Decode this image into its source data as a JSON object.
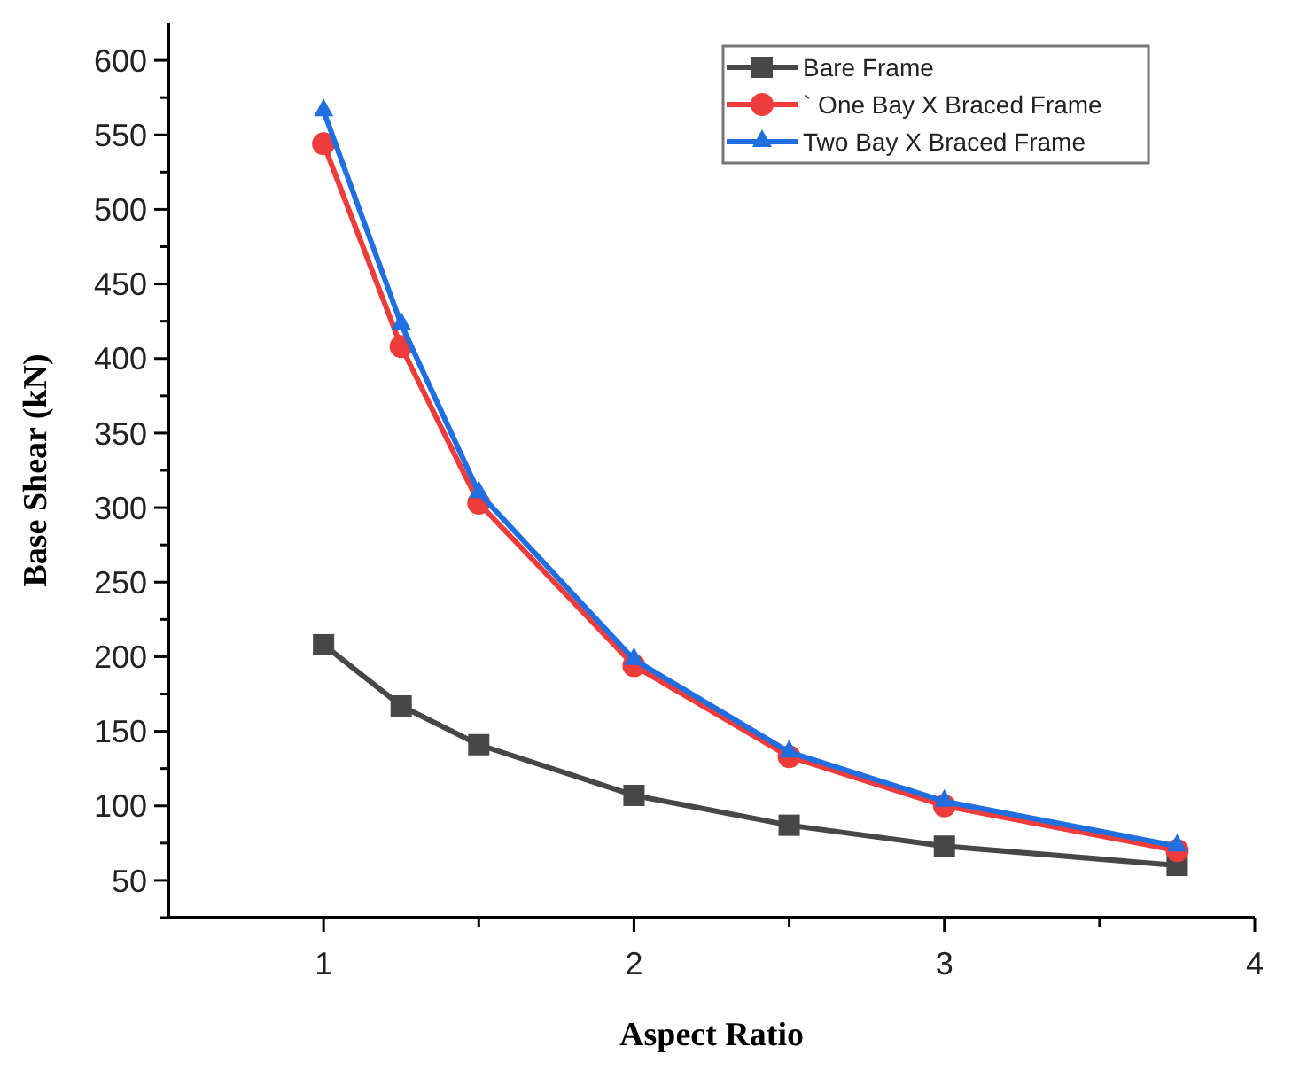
{
  "chart_data": {
    "type": "line",
    "xlabel": "Aspect Ratio",
    "ylabel": "Base Shear (kN)",
    "x": [
      1,
      1.25,
      1.5,
      2,
      2.5,
      3,
      3.75
    ],
    "series": [
      {
        "name": "Bare Frame",
        "color": "#474747",
        "marker": "square",
        "values": [
          208,
          167,
          141,
          107,
          87,
          73,
          60
        ]
      },
      {
        "name": "` One Bay X Braced Frame",
        "color": "#ee3b3b",
        "marker": "circle",
        "values": [
          544,
          408,
          303,
          194,
          133,
          100,
          70
        ]
      },
      {
        "name": "Two Bay X Braced Frame",
        "color": "#1f6fe0",
        "marker": "triangle",
        "values": [
          566,
          423,
          310,
          198,
          136,
          103,
          73
        ]
      }
    ],
    "xlim": [
      0.5,
      4
    ],
    "xticks": [
      1,
      {
        "value": 1.5,
        "label": null
      },
      2,
      {
        "value": 2.5,
        "label": null
      },
      3,
      {
        "value": 3.5,
        "label": null
      },
      4
    ],
    "ylim": [
      25,
      625
    ],
    "yticks": [
      {
        "value": 25,
        "label": null
      },
      50,
      {
        "value": 75,
        "label": null
      },
      100,
      {
        "value": 125,
        "label": null
      },
      150,
      {
        "value": 175,
        "label": null
      },
      200,
      {
        "value": 225,
        "label": null
      },
      250,
      {
        "value": 275,
        "label": null
      },
      300,
      {
        "value": 325,
        "label": null
      },
      350,
      {
        "value": 375,
        "label": null
      },
      400,
      {
        "value": 425,
        "label": null
      },
      450,
      {
        "value": 475,
        "label": null
      },
      500,
      {
        "value": 525,
        "label": null
      },
      550,
      {
        "value": 575,
        "label": null
      },
      600
    ],
    "grid": false,
    "legend": "top right",
    "line_style": "solid"
  }
}
